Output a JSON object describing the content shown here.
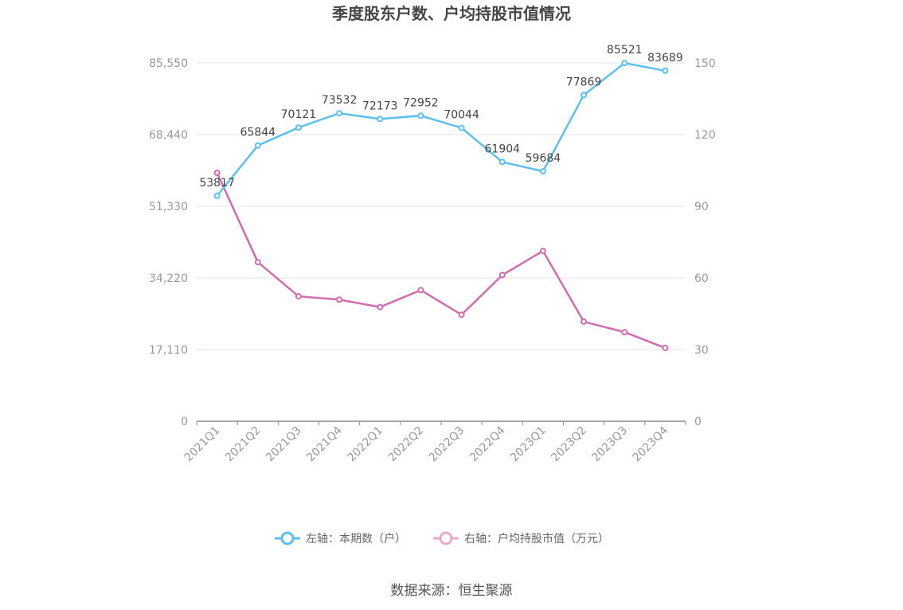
{
  "chart_data": {
    "type": "line",
    "title": "季度股东户数、户均持股市值情况",
    "categories": [
      "2021Q1",
      "2021Q2",
      "2021Q3",
      "2021Q4",
      "2022Q1",
      "2022Q2",
      "2022Q3",
      "2022Q4",
      "2023Q1",
      "2023Q2",
      "2023Q3",
      "2023Q4"
    ],
    "left_axis": {
      "ticks": [
        "0",
        "17,110",
        "34,220",
        "51,330",
        "68,440",
        "85,550"
      ],
      "max": 85550
    },
    "right_axis": {
      "ticks": [
        "0",
        "30",
        "60",
        "90",
        "120",
        "150"
      ],
      "max": 150
    },
    "series": [
      {
        "name": "左轴：本期数（户）",
        "axis": "left",
        "color": "#5bc0f0",
        "values": [
          53817,
          65844,
          70121,
          73532,
          72173,
          72952,
          70044,
          61904,
          59684,
          77869,
          85521,
          83689
        ],
        "labels": [
          "53817",
          "65844",
          "70121",
          "73532",
          "72173",
          "72952",
          "70044",
          "61904",
          "59684",
          "77869",
          "85521",
          "83689"
        ]
      },
      {
        "name": "右轴：户均持股市值（万元）",
        "axis": "right",
        "color": "#d36bb0",
        "values": [
          104.0,
          66.6,
          52.3,
          50.9,
          47.8,
          54.9,
          44.6,
          61.2,
          71.3,
          41.7,
          37.3,
          30.7
        ]
      }
    ],
    "grid": true,
    "legend_position": "bottom",
    "source": "数据来源：恒生聚源"
  }
}
